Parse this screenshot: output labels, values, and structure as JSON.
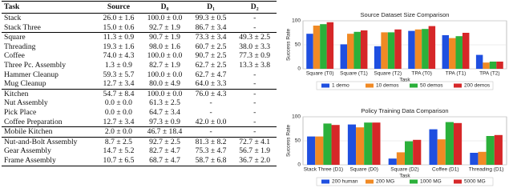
{
  "table": {
    "header": [
      "Task",
      "Source",
      "D₀",
      "D₁",
      "D₂"
    ],
    "groups": [
      [
        [
          "Stack",
          "26.0 ± 1.6",
          "100.0 ± 0.0",
          "99.3 ± 0.5",
          "-"
        ],
        [
          "Stack Three",
          "15.0 ± 0.6",
          "92.7 ± 1.9",
          "86.7 ± 3.4",
          "-"
        ]
      ],
      [
        [
          "Square",
          "11.3 ± 0.9",
          "90.7 ± 1.9",
          "73.3 ± 3.4",
          "49.3 ± 2.5"
        ],
        [
          "Threading",
          "19.3 ± 1.6",
          "98.0 ± 1.6",
          "60.7 ± 2.5",
          "38.0 ± 3.3"
        ],
        [
          "Coffee",
          "74.0 ± 4.3",
          "100.0 ± 0.0",
          "90.7 ± 2.5",
          "77.3 ± 0.9"
        ],
        [
          "Three Pc. Assembly",
          "1.3 ± 0.9",
          "82.7 ± 1.9",
          "62.7 ± 2.5",
          "13.3 ± 3.8"
        ],
        [
          "Hammer Cleanup",
          "59.3 ± 5.7",
          "100.0 ± 0.0",
          "62.7 ± 4.7",
          "-"
        ],
        [
          "Mug Cleanup",
          "12.7 ± 3.4",
          "80.0 ± 4.9",
          "64.0 ± 3.3",
          "-"
        ]
      ],
      [
        [
          "Kitchen",
          "54.7 ± 8.4",
          "100.0 ± 0.0",
          "76.0 ± 4.3",
          "-"
        ],
        [
          "Nut Assembly",
          "0.0 ± 0.0",
          "61.3 ± 2.5",
          "-",
          "-"
        ],
        [
          "Pick Place",
          "0.0 ± 0.0",
          "64.7 ± 3.4",
          "-",
          "-"
        ],
        [
          "Coffee Preparation",
          "12.7 ± 3.4",
          "97.3 ± 0.9",
          "42.0 ± 0.0",
          "-"
        ]
      ],
      [
        [
          "Mobile Kitchen",
          "2.0 ± 0.0",
          "46.7 ± 18.4",
          "-",
          "-"
        ]
      ],
      [
        [
          "Nut-and-Bolt Assembly",
          "8.7 ± 2.5",
          "92.7 ± 2.5",
          "81.3 ± 8.2",
          "72.7 ± 4.1"
        ],
        [
          "Gear Assembly",
          "14.7 ± 5.2",
          "82.7 ± 4.7",
          "75.3 ± 4.7",
          "56.7 ± 1.9"
        ],
        [
          "Frame Assembly",
          "10.7 ± 6.5",
          "68.7 ± 4.7",
          "58.7 ± 6.8",
          "36.7 ± 2.0"
        ]
      ]
    ]
  },
  "chart_data": [
    {
      "type": "bar",
      "title": "Source Dataset Size Comparison",
      "x_label": "Task",
      "y_label": "Success Rate",
      "categories": [
        "Square (T0)",
        "Square (T1)",
        "Square (T2)",
        "TPA (T0)",
        "TPA (T1)",
        "TPA (T2)"
      ],
      "series": [
        {
          "name": "1 demo",
          "color": "#1f4fe0",
          "values": [
            73,
            51,
            47,
            79,
            70,
            29
          ]
        },
        {
          "name": "10 demos",
          "color": "#f08a24",
          "values": [
            90,
            73,
            76,
            82,
            64,
            13
          ]
        },
        {
          "name": "50 demos",
          "color": "#2bb03a",
          "values": [
            93,
            77,
            76,
            83,
            68,
            15
          ]
        },
        {
          "name": "200 demos",
          "color": "#d62728",
          "values": [
            97,
            80,
            82,
            89,
            75,
            15
          ]
        }
      ],
      "ylim": [
        0,
        100
      ],
      "yticks": [
        0,
        50,
        100
      ],
      "grid": true,
      "legend": "bottom"
    },
    {
      "type": "bar",
      "title": "Policy Training Data Comparison",
      "x_label": "Task",
      "y_label": "Success Rate",
      "categories": [
        "Stack Three (D1)",
        "Square (D0)",
        "Square (D2)",
        "Coffee (D1)",
        "Threading (D1)"
      ],
      "series": [
        {
          "name": "200 human",
          "color": "#1f4fe0",
          "values": [
            59,
            84,
            13,
            74,
            25
          ]
        },
        {
          "name": "200 MG",
          "color": "#f08a24",
          "values": [
            59,
            78,
            26,
            53,
            27
          ]
        },
        {
          "name": "1000 MG",
          "color": "#2bb03a",
          "values": [
            86,
            88,
            49,
            89,
            60
          ]
        },
        {
          "name": "5000 MG",
          "color": "#d62728",
          "values": [
            83,
            88,
            52,
            87,
            62
          ]
        }
      ],
      "ylim": [
        0,
        100
      ],
      "yticks": [
        0,
        50,
        100
      ],
      "grid": true,
      "legend": "bottom"
    }
  ]
}
